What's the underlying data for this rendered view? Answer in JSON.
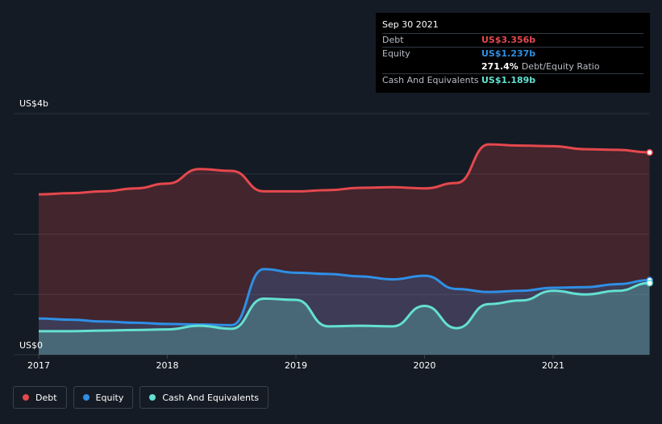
{
  "chart_data": {
    "type": "area",
    "ylabels": {
      "top": "US$4b",
      "bottom": "US$0"
    },
    "x_ticks": [
      "2017",
      "2018",
      "2019",
      "2020",
      "2021"
    ],
    "ylim": [
      0,
      4
    ],
    "grid": true,
    "legend_position": "bottom-left",
    "series": [
      {
        "name": "Debt",
        "color": "#e5484d",
        "x": [
          2017.0,
          2017.25,
          2017.5,
          2017.75,
          2018.0,
          2018.25,
          2018.5,
          2018.75,
          2019.0,
          2019.25,
          2019.5,
          2019.75,
          2020.0,
          2020.25,
          2020.5,
          2020.75,
          2021.0,
          2021.25,
          2021.5,
          2021.75
        ],
        "values": [
          2.66,
          2.68,
          2.71,
          2.76,
          2.84,
          3.08,
          3.05,
          2.71,
          2.71,
          2.73,
          2.77,
          2.78,
          2.76,
          2.85,
          3.49,
          3.47,
          3.46,
          3.41,
          3.4,
          3.356
        ]
      },
      {
        "name": "Equity",
        "color": "#2f8fe5",
        "x": [
          2017.0,
          2017.25,
          2017.5,
          2017.75,
          2018.0,
          2018.25,
          2018.5,
          2018.75,
          2019.0,
          2019.25,
          2019.5,
          2019.75,
          2020.0,
          2020.25,
          2020.5,
          2020.75,
          2021.0,
          2021.25,
          2021.5,
          2021.75
        ],
        "values": [
          0.6,
          0.58,
          0.55,
          0.53,
          0.51,
          0.5,
          0.49,
          1.42,
          1.36,
          1.34,
          1.3,
          1.25,
          1.31,
          1.09,
          1.04,
          1.06,
          1.11,
          1.12,
          1.17,
          1.237
        ]
      },
      {
        "name": "Cash And Equivalents",
        "color": "#64e0d2",
        "x": [
          2017.0,
          2017.25,
          2017.5,
          2017.75,
          2018.0,
          2018.25,
          2018.5,
          2018.75,
          2019.0,
          2019.25,
          2019.5,
          2019.75,
          2020.0,
          2020.25,
          2020.5,
          2020.75,
          2021.0,
          2021.25,
          2021.5,
          2021.75
        ],
        "values": [
          0.39,
          0.39,
          0.4,
          0.41,
          0.42,
          0.48,
          0.43,
          0.93,
          0.91,
          0.47,
          0.48,
          0.47,
          0.81,
          0.44,
          0.84,
          0.9,
          1.06,
          1.0,
          1.06,
          1.189
        ]
      }
    ]
  },
  "tooltip": {
    "date": "Sep 30 2021",
    "debt_label": "Debt",
    "debt_value": "US$3.356b",
    "equity_label": "Equity",
    "equity_value": "US$1.237b",
    "ratio_value": "271.4%",
    "ratio_label": "Debt/Equity Ratio",
    "cash_label": "Cash And Equivalents",
    "cash_value": "US$1.189b"
  },
  "legend": [
    {
      "label": "Debt",
      "color": "#e5484d"
    },
    {
      "label": "Equity",
      "color": "#2f8fe5"
    },
    {
      "label": "Cash And Equivalents",
      "color": "#64e0d2"
    }
  ],
  "colors": {
    "background": "#151b24",
    "grid": "#2d333c",
    "axis_text": "#ffffff"
  }
}
